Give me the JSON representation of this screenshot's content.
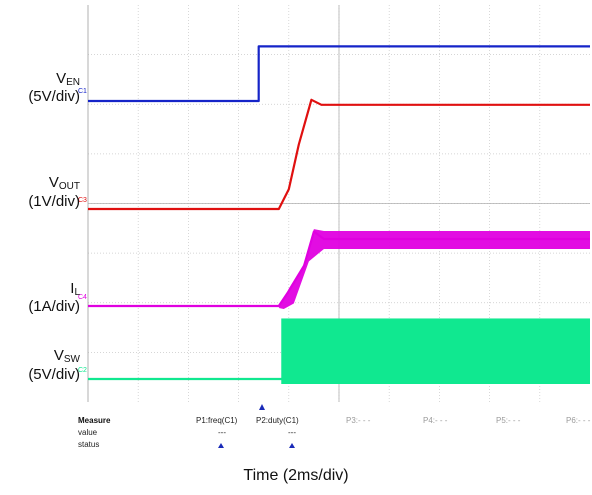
{
  "chart_data": {
    "type": "line",
    "x_unit_label": "Time (2ms/div)",
    "time_per_div_ms": 2,
    "series": [
      {
        "name": "VEN",
        "channel": "C1",
        "unit": "5V/div",
        "color": "#1524c8",
        "x_ms": [
          0,
          6.8,
          6.8,
          20
        ],
        "y_div": [
          0,
          0,
          1.1,
          1.1
        ]
      },
      {
        "name": "VOUT",
        "channel": "C3",
        "unit": "1V/div",
        "color": "#e01010",
        "x_ms": [
          0,
          7.6,
          8.0,
          8.4,
          8.9,
          9.3,
          20
        ],
        "y_div": [
          0,
          0,
          0.4,
          1.3,
          2.2,
          2.1,
          2.1
        ]
      },
      {
        "name": "IL",
        "channel": "C4",
        "unit": "1A/div",
        "color": "#e000e0",
        "x_ms": [
          0,
          7.6,
          8.0,
          8.6,
          9.0,
          9.4,
          20
        ],
        "y_div": [
          0,
          0,
          0.3,
          0.8,
          1.5,
          1.35,
          1.35
        ]
      },
      {
        "name": "VSW",
        "channel": "C2",
        "unit": "5V/div",
        "color": "#10e890",
        "x_ms": [
          0,
          7.7,
          20
        ],
        "y_div": [
          0,
          0,
          0
        ]
      }
    ]
  },
  "labels": {
    "ven_main": "V",
    "ven_sub": "EN",
    "ven_scale": "(5V/div)",
    "vout_main": "V",
    "vout_sub": "OUT",
    "vout_scale": "(1V/div)",
    "il_main": "I",
    "il_sub": "L",
    "il_scale": "(1A/div)",
    "vsw_main": "V",
    "vsw_sub": "SW",
    "vsw_scale": "(5V/div)"
  },
  "markers": {
    "c1": "C1",
    "c3": "C3",
    "c4": "C4",
    "c2": "C2"
  },
  "measure": {
    "header": "Measure",
    "row_value": "value",
    "row_status": "status",
    "p1": "P1:freq(C1)",
    "p2": "P2:duty(C1)",
    "p3": "P3:- - -",
    "p4": "P4:- - -",
    "p5": "P5:- - -",
    "p6": "P6:- - -",
    "p1_value": "---",
    "p2_value": "---"
  },
  "colors": {
    "grid": "#c8c8c8",
    "frame": "#b0b0b0",
    "marker": "#1a2bb8"
  }
}
